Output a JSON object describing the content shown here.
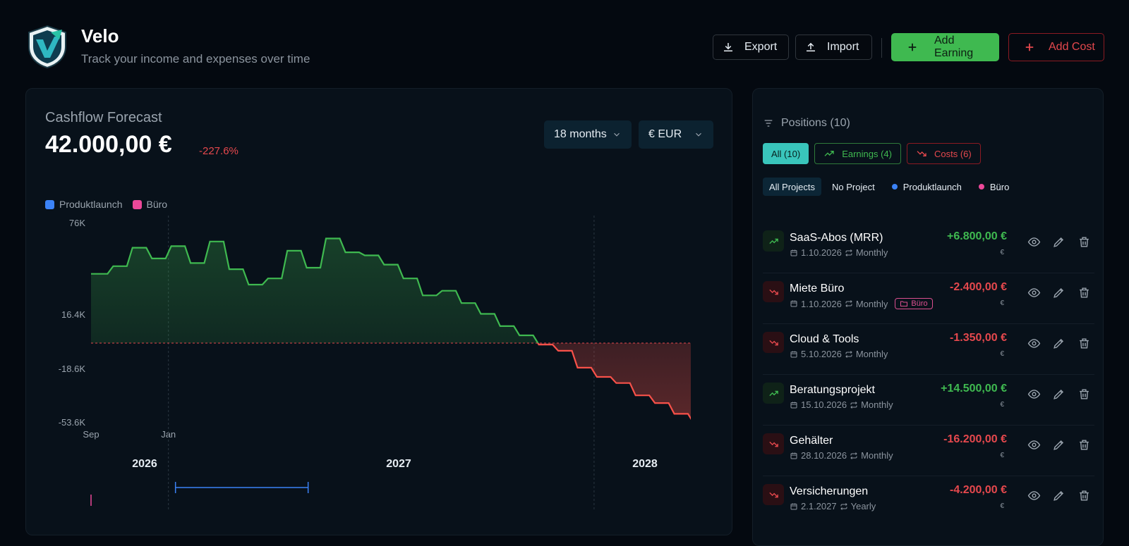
{
  "app": {
    "title": "Velo",
    "subtitle": "Track your income and expenses over time"
  },
  "header": {
    "export_label": "Export",
    "import_label": "Import",
    "add_earning_label": "Add Earning",
    "add_cost_label": "Add Cost"
  },
  "forecast": {
    "title": "Cashflow Forecast",
    "value": "42.000,00 €",
    "change": "-227.6%",
    "range_select": "18 months",
    "currency_select": "€ EUR",
    "legend": [
      {
        "label": "Produktlaunch",
        "color": "#3b82f6"
      },
      {
        "label": "Büro",
        "color": "#ec4899"
      }
    ]
  },
  "chart_data": {
    "type": "area",
    "title": "Cashflow Forecast",
    "y_ticks": [
      "76K",
      "16.4K",
      "-18.6K",
      "-53.6K"
    ],
    "x_ticks": [
      "Sep",
      "Jan"
    ],
    "years": [
      "2026",
      "2027",
      "2028"
    ],
    "ylim": [
      -53600,
      76000
    ],
    "colors": {
      "positive": "#3fb950",
      "negative": "#f85149"
    },
    "series": [
      {
        "x": [
          "2025-09",
          "2025-10",
          "2025-11",
          "2025-12",
          "2026-01",
          "2026-02",
          "2026-03",
          "2026-04",
          "2026-05",
          "2026-06",
          "2026-07",
          "2026-08",
          "2026-09",
          "2026-10",
          "2026-11",
          "2026-12",
          "2027-01",
          "2027-02",
          "2027-03",
          "2027-04",
          "2027-05",
          "2027-06",
          "2027-07",
          "2027-08",
          "2027-09",
          "2027-10",
          "2027-11",
          "2027-12",
          "2028-01",
          "2028-02",
          "2028-03",
          "2028-04"
        ],
        "values": [
          45000,
          50000,
          62000,
          55000,
          63000,
          52000,
          66000,
          48000,
          38000,
          42000,
          60000,
          49000,
          68000,
          59000,
          57000,
          51000,
          42000,
          31000,
          34000,
          26000,
          19000,
          11000,
          5000,
          -1000,
          -5000,
          -16000,
          -22000,
          -26000,
          -34000,
          -39000,
          -46000,
          -52000
        ]
      }
    ],
    "project_spans": [
      {
        "project": "Produktlaunch",
        "start": "2026-01",
        "end": "2026-06"
      },
      {
        "project": "Büro",
        "start": "2025-09",
        "end": "2025-09"
      }
    ]
  },
  "positions": {
    "header": "Positions (10)",
    "filters": {
      "all": "All (10)",
      "earnings": "Earnings (4)",
      "costs": "Costs (6)"
    },
    "projects": {
      "all": "All Projects",
      "none": "No Project",
      "p1": "Produktlaunch",
      "p2": "Büro"
    },
    "items": [
      {
        "name": "SaaS-Abos (MRR)",
        "date": "1.10.2026",
        "freq": "Monthly",
        "amount": "+6.800,00 €",
        "currency": "€",
        "type": "up",
        "tag": ""
      },
      {
        "name": "Miete Büro",
        "date": "1.10.2026",
        "freq": "Monthly",
        "amount": "-2.400,00 €",
        "currency": "€",
        "type": "down",
        "tag": "Büro"
      },
      {
        "name": "Cloud & Tools",
        "date": "5.10.2026",
        "freq": "Monthly",
        "amount": "-1.350,00 €",
        "currency": "€",
        "type": "down",
        "tag": ""
      },
      {
        "name": "Beratungsprojekt",
        "date": "15.10.2026",
        "freq": "Monthly",
        "amount": "+14.500,00 €",
        "currency": "€",
        "type": "up",
        "tag": ""
      },
      {
        "name": "Gehälter",
        "date": "28.10.2026",
        "freq": "Monthly",
        "amount": "-16.200,00 €",
        "currency": "€",
        "type": "down",
        "tag": ""
      },
      {
        "name": "Versicherungen",
        "date": "2.1.2027",
        "freq": "Yearly",
        "amount": "-4.200,00 €",
        "currency": "€",
        "type": "down",
        "tag": ""
      }
    ]
  }
}
